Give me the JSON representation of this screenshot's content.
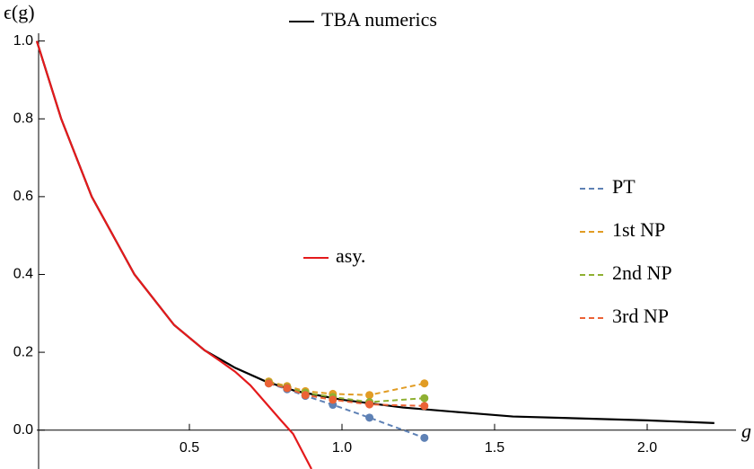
{
  "chart_data": {
    "type": "line",
    "x_label": "g",
    "y_label": "ϵ(g)",
    "xlim": [
      0,
      2.25
    ],
    "ylim": [
      -0.1,
      1.02
    ],
    "xticks": [
      0.5,
      {
        "value": 1,
        "label": "1.0"
      },
      1.5,
      {
        "value": 2,
        "label": "2.0"
      }
    ],
    "yticks": [
      {
        "value": 0,
        "label": "0.0"
      },
      0.2,
      0.4,
      0.6,
      0.8,
      {
        "value": 1,
        "label": "1.0"
      }
    ],
    "series": [
      {
        "name": "TBA numerics",
        "color": "#000000",
        "dashed": false,
        "markers": false,
        "x": [
          0,
          0.08,
          0.18,
          0.32,
          0.45,
          0.55,
          0.65,
          0.75,
          0.85,
          1.0,
          1.2,
          1.4,
          1.56,
          2.0,
          2.22
        ],
        "values": [
          1.0,
          0.8,
          0.6,
          0.4,
          0.27,
          0.205,
          0.16,
          0.125,
          0.1,
          0.078,
          0.058,
          0.045,
          0.035,
          0.025,
          0.018
        ]
      },
      {
        "name": "asy.",
        "color": "#e41a1c",
        "dashed": false,
        "markers": false,
        "x": [
          0,
          0.08,
          0.18,
          0.32,
          0.45,
          0.55,
          0.6,
          0.65,
          0.7,
          0.75,
          0.8,
          0.84,
          0.9
        ],
        "values": [
          1.0,
          0.8,
          0.6,
          0.4,
          0.27,
          0.205,
          0.178,
          0.15,
          0.115,
          0.07,
          0.025,
          -0.01,
          -0.1
        ]
      },
      {
        "name": "PT",
        "color": "#5e81b5",
        "dashed": true,
        "markers": true,
        "x": [
          0.76,
          0.82,
          0.88,
          0.97,
          1.09,
          1.27
        ],
        "values": [
          0.12,
          0.105,
          0.088,
          0.065,
          0.032,
          -0.02
        ]
      },
      {
        "name": "1st NP",
        "color": "#e19c24",
        "dashed": true,
        "markers": true,
        "x": [
          0.76,
          0.82,
          0.88,
          0.97,
          1.09,
          1.27
        ],
        "values": [
          0.125,
          0.113,
          0.1,
          0.093,
          0.09,
          0.12
        ]
      },
      {
        "name": "2nd NP",
        "color": "#8fb032",
        "dashed": true,
        "markers": true,
        "x": [
          0.76,
          0.82,
          0.88,
          0.97,
          1.09,
          1.27
        ],
        "values": [
          0.122,
          0.11,
          0.096,
          0.085,
          0.072,
          0.082
        ]
      },
      {
        "name": "3rd NP",
        "color": "#eb6235",
        "dashed": true,
        "markers": true,
        "x": [
          0.76,
          0.82,
          0.88,
          0.97,
          1.09,
          1.27
        ],
        "values": [
          0.12,
          0.108,
          0.09,
          0.078,
          0.066,
          0.062
        ]
      }
    ]
  }
}
